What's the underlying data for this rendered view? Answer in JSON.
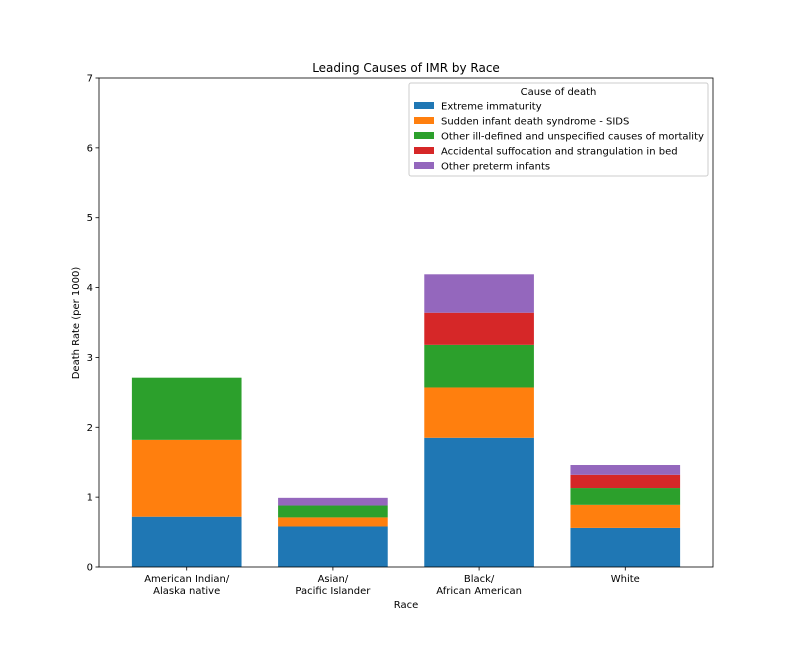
{
  "chart_data": {
    "type": "bar",
    "stacked": true,
    "title": "Leading Causes of IMR by Race",
    "xlabel": "Race",
    "ylabel": "Death Rate (per 1000)",
    "ylim": [
      0,
      7
    ],
    "yticks": [
      0,
      1,
      2,
      3,
      4,
      5,
      6,
      7
    ],
    "grid": false,
    "categories": [
      [
        "American Indian/",
        "Alaska native"
      ],
      [
        "Asian/",
        "Pacific Islander"
      ],
      [
        "Black/",
        "African American"
      ],
      [
        "White"
      ]
    ],
    "legend": {
      "title": "Cause of death",
      "placement": "top-right"
    },
    "series": [
      {
        "name": "Extreme immaturity",
        "color": "#1f77b4",
        "values": [
          0.72,
          0.58,
          1.85,
          0.56
        ]
      },
      {
        "name": "Sudden infant death syndrome - SIDS",
        "color": "#ff7f0e",
        "values": [
          1.1,
          0.13,
          0.72,
          0.33
        ]
      },
      {
        "name": "Other ill-defined and unspecified causes of mortality",
        "color": "#2ca02c",
        "values": [
          0.89,
          0.17,
          0.61,
          0.24
        ]
      },
      {
        "name": "Accidental suffocation and strangulation in bed",
        "color": "#d62728",
        "values": [
          0,
          0,
          0.46,
          0.19
        ]
      },
      {
        "name": "Other preterm infants",
        "color": "#9467bd",
        "values": [
          0,
          0.11,
          0.55,
          0.14
        ]
      }
    ]
  }
}
